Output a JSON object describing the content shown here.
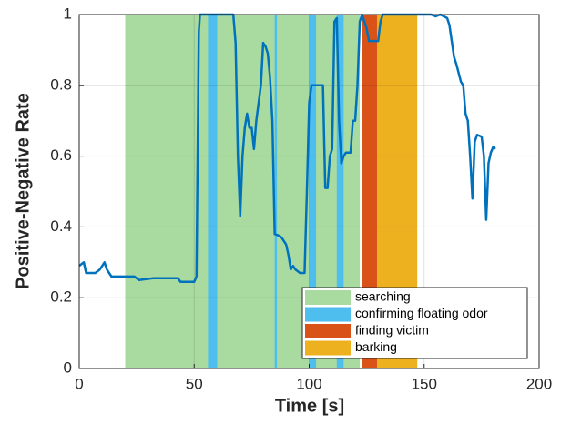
{
  "chart_data": {
    "type": "line",
    "xlabel": "Time [s]",
    "ylabel": "Positive-Negative Rate",
    "xlim": [
      0,
      200
    ],
    "xticks": [
      0,
      50,
      100,
      150,
      200
    ],
    "ylim": [
      0,
      1
    ],
    "yticks": [
      0,
      0.2,
      0.4,
      0.6,
      0.8,
      1
    ],
    "grid": true,
    "legend": "lower right",
    "color": "#0072bd",
    "regions": [
      {
        "name": "searching",
        "color": "#a9dba0",
        "spans": [
          [
            20,
            122
          ]
        ]
      },
      {
        "name": "confirming floating odor",
        "color": "#4dbeee",
        "spans": [
          [
            56,
            60
          ],
          [
            85,
            86
          ],
          [
            100,
            103
          ],
          [
            112,
            115
          ]
        ]
      },
      {
        "name": "finding victim",
        "color": "#d95319",
        "spans": [
          [
            123,
            129.5
          ]
        ]
      },
      {
        "name": "barking",
        "color": "#edb120",
        "spans": [
          [
            129.5,
            147
          ]
        ]
      }
    ],
    "x": [
      0,
      2,
      3,
      7,
      9,
      11,
      12,
      14,
      24,
      26,
      32,
      43,
      44,
      50,
      51,
      52,
      52.5,
      67,
      68,
      69,
      70,
      71,
      72,
      73,
      74,
      75,
      76,
      77,
      78,
      79,
      80,
      81,
      82,
      83,
      84,
      85,
      87,
      88,
      89,
      90,
      91,
      92,
      93,
      94,
      96,
      98,
      99,
      100,
      101,
      106,
      106.5,
      107,
      108,
      109,
      110,
      111,
      112,
      113,
      114,
      115,
      116,
      118,
      119,
      120,
      121,
      122,
      123,
      125,
      126,
      130,
      131,
      132,
      153,
      155,
      157,
      160,
      161,
      163,
      164,
      166,
      167,
      168,
      169,
      170,
      171,
      172,
      173,
      175,
      176,
      177,
      178,
      179,
      180,
      181
    ],
    "values": [
      0.29,
      0.3,
      0.27,
      0.27,
      0.28,
      0.3,
      0.28,
      0.26,
      0.26,
      0.25,
      0.255,
      0.255,
      0.245,
      0.245,
      0.26,
      0.95,
      1,
      1,
      0.92,
      0.6,
      0.43,
      0.6,
      0.68,
      0.72,
      0.68,
      0.68,
      0.62,
      0.7,
      0.75,
      0.8,
      0.92,
      0.91,
      0.89,
      0.82,
      0.7,
      0.38,
      0.375,
      0.37,
      0.36,
      0.35,
      0.32,
      0.28,
      0.29,
      0.28,
      0.27,
      0.27,
      0.5,
      0.75,
      0.8,
      0.8,
      0.65,
      0.51,
      0.51,
      0.6,
      0.62,
      0.98,
      0.99,
      0.7,
      0.58,
      0.6,
      0.61,
      0.61,
      0.7,
      0.7,
      0.8,
      0.98,
      1,
      0.96,
      0.925,
      0.925,
      0.98,
      1,
      1,
      0.995,
      1,
      0.99,
      0.97,
      0.88,
      0.86,
      0.81,
      0.8,
      0.72,
      0.7,
      0.6,
      0.48,
      0.64,
      0.66,
      0.655,
      0.6,
      0.42,
      0.58,
      0.61,
      0.625,
      0.62
    ]
  }
}
